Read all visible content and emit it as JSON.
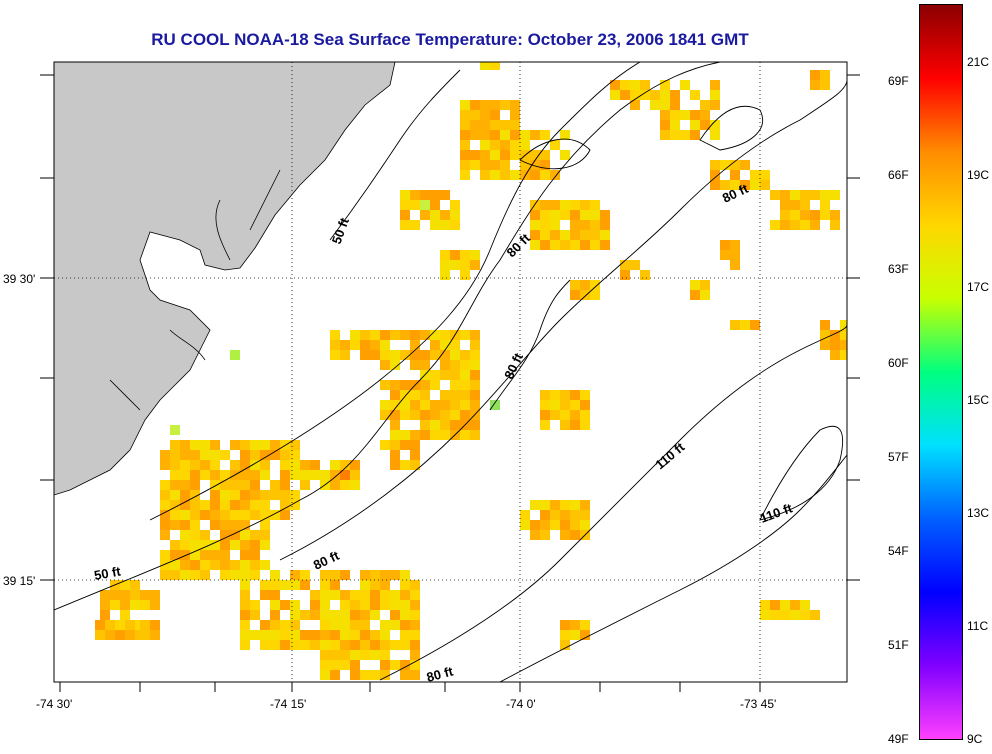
{
  "title": "RU COOL  NOAA-18  Sea Surface Temperature:  October 23, 2006 1841 GMT",
  "lat_labels": [
    "39 30'",
    "39 15'"
  ],
  "lon_labels": [
    "-74 30'",
    "-74 15'",
    "-74 0'",
    "-73 45'"
  ],
  "contour_labels": [
    {
      "text": "50 ft"
    },
    {
      "text": "80 ft"
    },
    {
      "text": "80 ft"
    },
    {
      "text": "80 ft"
    },
    {
      "text": "110 ft"
    },
    {
      "text": "110 ft"
    },
    {
      "text": "50 ft"
    },
    {
      "text": "80 ft"
    },
    {
      "text": "80 ft"
    }
  ],
  "colorbar": {
    "f_labels": [
      "69F",
      "66F",
      "63F",
      "60F",
      "57F",
      "54F",
      "51F",
      "49F"
    ],
    "c_labels": [
      "21C",
      "19C",
      "17C",
      "15C",
      "13C",
      "11C",
      "9C"
    ],
    "stops": [
      "#8b0000",
      "#ff0000",
      "#ff8c00",
      "#ffd700",
      "#c8ff00",
      "#00ff80",
      "#00e0ff",
      "#0060ff",
      "#0000ff",
      "#8000ff",
      "#ff40ff"
    ]
  },
  "colors": {
    "land": "#c8c8c8",
    "title": "#1a1aa0"
  }
}
